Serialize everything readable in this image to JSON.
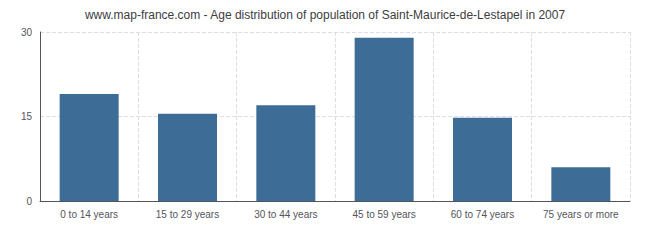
{
  "chart_data": {
    "type": "bar",
    "title": "www.map-france.com - Age distribution of population of Saint-Maurice-de-Lestapel in 2007",
    "categories": [
      "0 to 14 years",
      "15 to 29 years",
      "30 to 44 years",
      "45 to 59 years",
      "60 to 74 years",
      "75 years or more"
    ],
    "values": [
      19,
      15.5,
      17,
      29,
      14.8,
      6.0
    ],
    "color": "#3d6d96",
    "ylim": [
      0,
      30
    ],
    "yticks": [
      0,
      15,
      30
    ],
    "grid": true
  }
}
